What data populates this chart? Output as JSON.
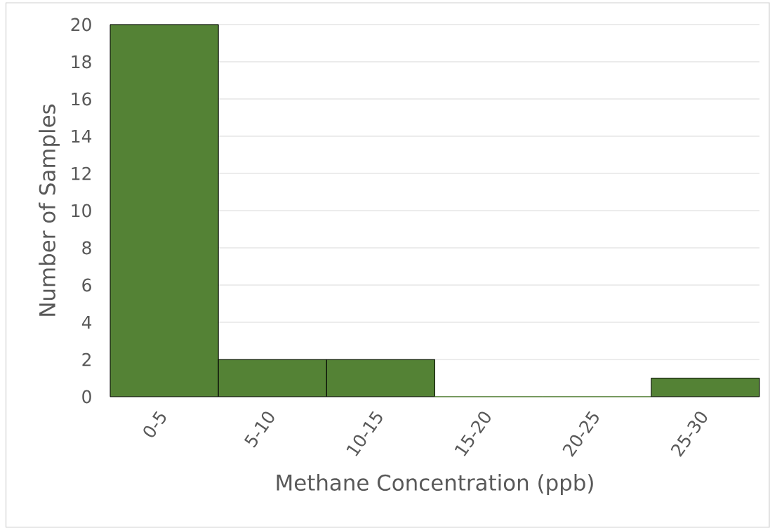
{
  "chart_data": {
    "type": "bar",
    "xlabel": "Methane Concentration (ppb)",
    "ylabel": "Number of Samples",
    "categories": [
      "0-5",
      "5-10",
      "10-15",
      "15-20",
      "20-25",
      "25-30"
    ],
    "values": [
      20,
      2,
      2,
      0,
      0,
      1
    ],
    "color": "#548235",
    "ylim": [
      0,
      20
    ],
    "yticks": [
      0,
      2,
      4,
      6,
      8,
      10,
      12,
      14,
      16,
      18,
      20
    ],
    "grid": "y"
  }
}
